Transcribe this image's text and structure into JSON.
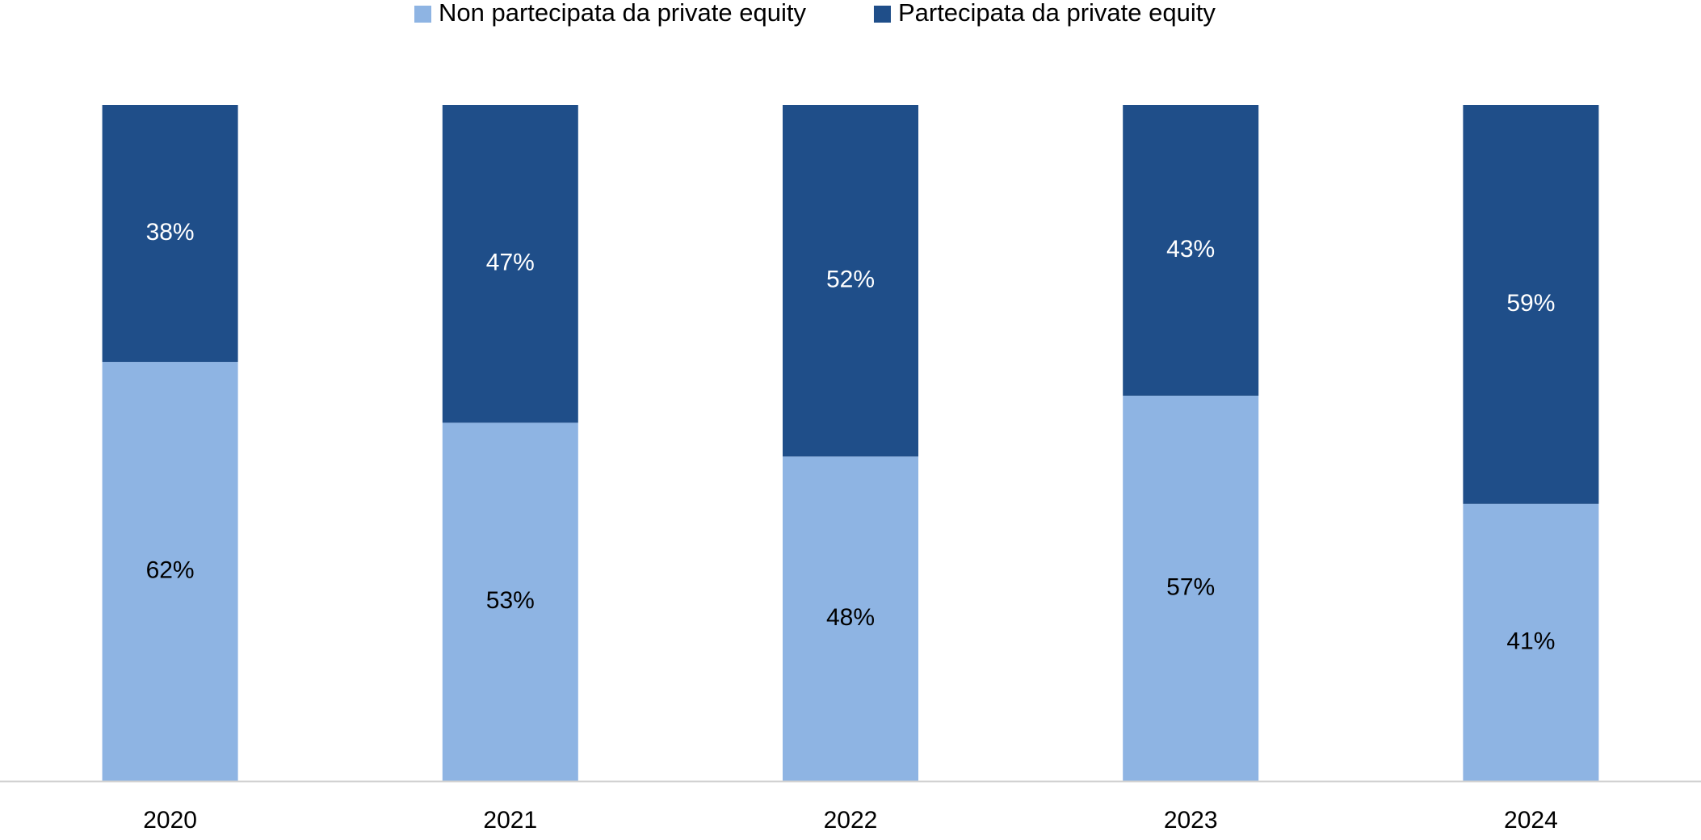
{
  "chart_data": {
    "type": "stacked_bar",
    "categories": [
      "2020",
      "2021",
      "2022",
      "2023",
      "2024"
    ],
    "ylim": [
      0,
      100
    ],
    "series": [
      {
        "name": "Non partecipata da private equity",
        "color": "#8eb4e3",
        "values": [
          62,
          53,
          48,
          57,
          41
        ],
        "value_labels": [
          "62%",
          "53%",
          "48%",
          "57%",
          "41%"
        ]
      },
      {
        "name": "Partecipata da private equity",
        "color": "#1f4e89",
        "values": [
          38,
          47,
          52,
          43,
          59
        ],
        "value_labels": [
          "38%",
          "47%",
          "52%",
          "43%",
          "59%"
        ]
      }
    ],
    "legend": "top"
  }
}
